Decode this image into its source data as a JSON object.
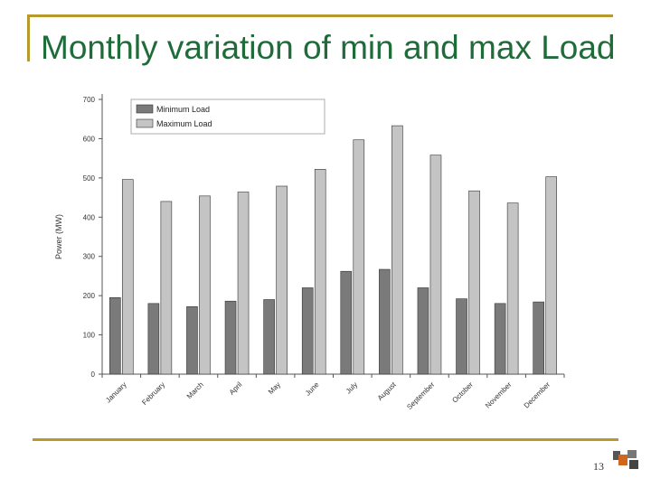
{
  "slide": {
    "title": "Monthly variation of min and max Load",
    "page_number": "13"
  },
  "colors": {
    "frame": "#b69a2d",
    "title": "#1f6b3a",
    "min_series": "#7a7a7a",
    "max_series": "#c4c4c4"
  },
  "chart_data": {
    "type": "bar",
    "categories": [
      "January",
      "February",
      "March",
      "April",
      "May",
      "June",
      "July",
      "August",
      "September",
      "October",
      "November",
      "December"
    ],
    "series": [
      {
        "name": "Minimum Load",
        "values": [
          195,
          180,
          172,
          186,
          190,
          220,
          262,
          267,
          220,
          192,
          180,
          184
        ]
      },
      {
        "name": "Maximum Load",
        "values": [
          496,
          440,
          454,
          464,
          479,
          522,
          597,
          633,
          558,
          467,
          436,
          503
        ]
      }
    ],
    "xlabel": "",
    "ylabel": "Power (MW)",
    "ylim": [
      0,
      700
    ],
    "yticks": [
      0,
      100,
      200,
      300,
      400,
      500,
      600,
      700
    ],
    "legend": "top-left",
    "grid": false
  }
}
